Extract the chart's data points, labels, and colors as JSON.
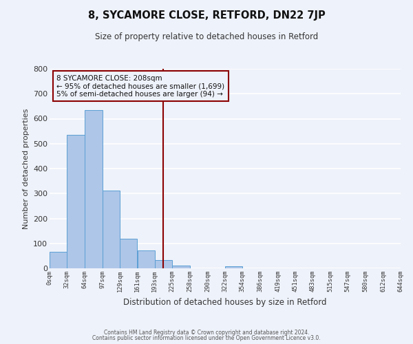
{
  "title": "8, SYCAMORE CLOSE, RETFORD, DN22 7JP",
  "subtitle": "Size of property relative to detached houses in Retford",
  "xlabel": "Distribution of detached houses by size in Retford",
  "ylabel": "Number of detached properties",
  "footer_line1": "Contains HM Land Registry data © Crown copyright and database right 2024.",
  "footer_line2": "Contains public sector information licensed under the Open Government Licence v3.0.",
  "annotation_line1": "8 SYCAMORE CLOSE: 208sqm",
  "annotation_line2": "← 95% of detached houses are smaller (1,699)",
  "annotation_line3": "5% of semi-detached houses are larger (94) →",
  "vline_x": 208,
  "bar_edges": [
    0,
    32,
    64,
    97,
    129,
    161,
    193,
    225,
    258,
    290,
    322,
    354,
    386,
    419,
    451,
    483,
    515,
    547,
    580,
    612,
    644
  ],
  "bar_heights": [
    65,
    535,
    635,
    312,
    120,
    72,
    32,
    12,
    0,
    0,
    8,
    0,
    0,
    0,
    0,
    0,
    0,
    0,
    0,
    0
  ],
  "bar_color": "#aec6e8",
  "bar_edge_color": "#5a9fd4",
  "vline_color": "#8b0000",
  "annotation_box_edge_color": "#8b0000",
  "background_color": "#eef2fa",
  "grid_color": "#ffffff",
  "ylim": [
    0,
    800
  ],
  "xlim": [
    0,
    644
  ],
  "tick_labels": [
    "0sqm",
    "32sqm",
    "64sqm",
    "97sqm",
    "129sqm",
    "161sqm",
    "193sqm",
    "225sqm",
    "258sqm",
    "290sqm",
    "322sqm",
    "354sqm",
    "386sqm",
    "419sqm",
    "451sqm",
    "483sqm",
    "515sqm",
    "547sqm",
    "580sqm",
    "612sqm",
    "644sqm"
  ]
}
